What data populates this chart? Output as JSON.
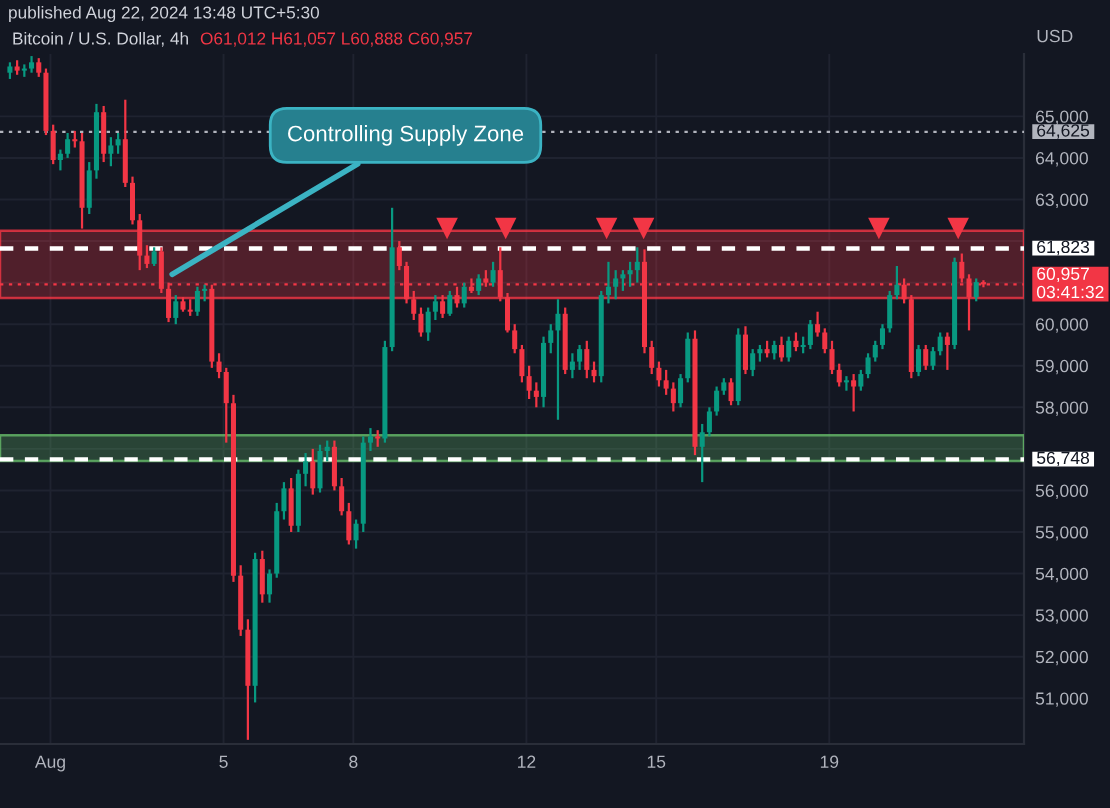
{
  "chart_data": {
    "type": "candlestick",
    "title": "Bitcoin / U.S. Dollar, 4h",
    "subtitle": "O61,012 H61,057 L60,888 C60,957",
    "ylabel": "USD",
    "annotations": [
      "published Aug 22, 2024 13:48 UTC+5:30",
      {
        "text": "Controlling Supply Zone",
        "x": "2024-08-03T19:30",
        "y": 61200
      }
    ],
    "x": [
      "2024-07-31T01:30",
      "2024-07-31T05:30",
      "2024-07-31T09:30",
      "2024-07-31T13:30",
      "2024-07-31T17:30",
      "2024-07-31T21:30",
      "2024-08-01T01:30",
      "2024-08-01T05:30",
      "2024-08-01T09:30",
      "2024-08-01T13:30",
      "2024-08-01T17:30",
      "2024-08-01T21:30",
      "2024-08-02T01:30",
      "2024-08-02T05:30",
      "2024-08-02T09:30",
      "2024-08-02T13:30",
      "2024-08-02T17:30",
      "2024-08-02T21:30",
      "2024-08-03T01:30",
      "2024-08-03T05:30",
      "2024-08-03T09:30",
      "2024-08-03T13:30",
      "2024-08-03T17:30",
      "2024-08-03T21:30",
      "2024-08-04T01:30",
      "2024-08-04T05:30",
      "2024-08-04T09:30",
      "2024-08-04T13:30",
      "2024-08-04T17:30",
      "2024-08-04T21:30",
      "2024-08-05T01:30",
      "2024-08-05T05:30",
      "2024-08-05T09:30",
      "2024-08-05T13:30",
      "2024-08-05T17:30",
      "2024-08-05T21:30",
      "2024-08-06T01:30",
      "2024-08-06T05:30",
      "2024-08-06T09:30",
      "2024-08-06T13:30",
      "2024-08-06T17:30",
      "2024-08-06T21:30",
      "2024-08-07T01:30",
      "2024-08-07T05:30",
      "2024-08-07T09:30",
      "2024-08-07T13:30",
      "2024-08-07T17:30",
      "2024-08-07T21:30",
      "2024-08-08T01:30",
      "2024-08-08T05:30",
      "2024-08-08T09:30",
      "2024-08-08T13:30",
      "2024-08-08T17:30",
      "2024-08-08T21:30",
      "2024-08-09T01:30",
      "2024-08-09T05:30",
      "2024-08-09T09:30",
      "2024-08-09T13:30",
      "2024-08-09T17:30",
      "2024-08-09T21:30",
      "2024-08-10T01:30",
      "2024-08-10T05:30",
      "2024-08-10T09:30",
      "2024-08-10T13:30",
      "2024-08-10T17:30",
      "2024-08-10T21:30",
      "2024-08-11T01:30",
      "2024-08-11T05:30",
      "2024-08-11T09:30",
      "2024-08-11T13:30",
      "2024-08-11T17:30",
      "2024-08-11T21:30",
      "2024-08-12T01:30",
      "2024-08-12T05:30",
      "2024-08-12T09:30",
      "2024-08-12T13:30",
      "2024-08-12T17:30",
      "2024-08-12T21:30",
      "2024-08-13T01:30",
      "2024-08-13T05:30",
      "2024-08-13T09:30",
      "2024-08-13T13:30",
      "2024-08-13T17:30",
      "2024-08-13T21:30",
      "2024-08-14T01:30",
      "2024-08-14T05:30",
      "2024-08-14T09:30",
      "2024-08-14T13:30",
      "2024-08-14T17:30",
      "2024-08-14T21:30",
      "2024-08-15T01:30",
      "2024-08-15T05:30",
      "2024-08-15T09:30",
      "2024-08-15T13:30",
      "2024-08-15T17:30",
      "2024-08-15T21:30",
      "2024-08-16T01:30",
      "2024-08-16T05:30",
      "2024-08-16T09:30",
      "2024-08-16T13:30",
      "2024-08-16T17:30",
      "2024-08-16T21:30",
      "2024-08-17T01:30",
      "2024-08-17T05:30",
      "2024-08-17T09:30",
      "2024-08-17T13:30",
      "2024-08-17T17:30",
      "2024-08-17T21:30",
      "2024-08-18T01:30",
      "2024-08-18T05:30",
      "2024-08-18T09:30",
      "2024-08-18T13:30",
      "2024-08-18T17:30",
      "2024-08-18T21:30",
      "2024-08-19T01:30",
      "2024-08-19T05:30",
      "2024-08-19T09:30",
      "2024-08-19T13:30",
      "2024-08-19T17:30",
      "2024-08-19T21:30",
      "2024-08-20T01:30",
      "2024-08-20T05:30",
      "2024-08-20T09:30",
      "2024-08-20T13:30",
      "2024-08-20T17:30",
      "2024-08-20T21:30",
      "2024-08-21T01:30",
      "2024-08-21T05:30",
      "2024-08-21T09:30",
      "2024-08-21T13:30",
      "2024-08-21T17:30",
      "2024-08-21T21:30",
      "2024-08-22T01:30",
      "2024-08-22T05:30",
      "2024-08-22T09:30",
      "2024-08-22T13:30"
    ],
    "ohlc": [
      [
        66050,
        66300,
        65900,
        66200
      ],
      [
        66200,
        66350,
        66000,
        66100
      ],
      [
        66100,
        66250,
        65950,
        66150
      ],
      [
        66150,
        66450,
        66050,
        66300
      ],
      [
        66300,
        66400,
        65950,
        66050
      ],
      [
        66050,
        66150,
        64550,
        64650
      ],
      [
        64650,
        64800,
        63850,
        63950
      ],
      [
        63950,
        64200,
        63700,
        64100
      ],
      [
        64100,
        64600,
        64000,
        64450
      ],
      [
        64450,
        64650,
        64250,
        64400
      ],
      [
        64400,
        64600,
        62300,
        62800
      ],
      [
        62800,
        63900,
        62650,
        63700
      ],
      [
        63700,
        65300,
        63500,
        65100
      ],
      [
        65100,
        65250,
        63900,
        64100
      ],
      [
        64100,
        64500,
        63800,
        64300
      ],
      [
        64300,
        64600,
        64100,
        64450
      ],
      [
        64450,
        65400,
        63300,
        63400
      ],
      [
        63400,
        63550,
        62400,
        62500
      ],
      [
        62500,
        62650,
        61300,
        61650
      ],
      [
        61650,
        61900,
        61350,
        61450
      ],
      [
        61450,
        61850,
        61400,
        61750
      ],
      [
        61750,
        61850,
        60750,
        60850
      ],
      [
        60850,
        61000,
        60050,
        60150
      ],
      [
        60150,
        60700,
        60000,
        60550
      ],
      [
        60550,
        60650,
        60300,
        60350
      ],
      [
        60350,
        60600,
        60200,
        60300
      ],
      [
        60300,
        60900,
        60200,
        60800
      ],
      [
        60800,
        60950,
        60550,
        60850
      ],
      [
        60850,
        60950,
        58950,
        59100
      ],
      [
        59100,
        59300,
        58700,
        58850
      ],
      [
        58850,
        58950,
        57150,
        58100
      ],
      [
        58100,
        58300,
        53800,
        53950
      ],
      [
        53950,
        54200,
        52500,
        52650
      ],
      [
        52650,
        52900,
        50000,
        51300
      ],
      [
        51300,
        54500,
        50900,
        54350
      ],
      [
        54350,
        54550,
        53300,
        53500
      ],
      [
        53500,
        54100,
        53300,
        54000
      ],
      [
        54000,
        55700,
        53900,
        55500
      ],
      [
        55500,
        56200,
        55300,
        56050
      ],
      [
        56050,
        56300,
        55000,
        55150
      ],
      [
        55150,
        56500,
        55000,
        56400
      ],
      [
        56400,
        56900,
        56100,
        56700
      ],
      [
        56700,
        57000,
        55900,
        56050
      ],
      [
        56050,
        57100,
        55950,
        56950
      ],
      [
        56950,
        57200,
        56700,
        57050
      ],
      [
        57050,
        57200,
        56000,
        56100
      ],
      [
        56100,
        56300,
        55400,
        55500
      ],
      [
        55500,
        55700,
        54700,
        54800
      ],
      [
        54800,
        55300,
        54600,
        55200
      ],
      [
        55200,
        57300,
        55000,
        57150
      ],
      [
        57150,
        57500,
        56950,
        57300
      ],
      [
        57300,
        57450,
        57050,
        57250
      ],
      [
        57250,
        59600,
        57150,
        59450
      ],
      [
        59450,
        62800,
        59350,
        61850
      ],
      [
        61850,
        62000,
        61300,
        61400
      ],
      [
        61400,
        61500,
        60500,
        60600
      ],
      [
        60600,
        60800,
        60100,
        60250
      ],
      [
        60250,
        60400,
        59700,
        59800
      ],
      [
        59800,
        60400,
        59600,
        60300
      ],
      [
        60300,
        60700,
        60100,
        60550
      ],
      [
        60550,
        60700,
        60150,
        60250
      ],
      [
        60250,
        60800,
        60200,
        60700
      ],
      [
        60700,
        60900,
        60400,
        60500
      ],
      [
        60500,
        61000,
        60400,
        60900
      ],
      [
        60900,
        61100,
        60750,
        60800
      ],
      [
        60800,
        61200,
        60700,
        61100
      ],
      [
        61100,
        61300,
        60900,
        61000
      ],
      [
        61000,
        61500,
        60900,
        61300
      ],
      [
        61300,
        61850,
        60550,
        60650
      ],
      [
        60650,
        60750,
        59800,
        59850
      ],
      [
        59850,
        60000,
        59300,
        59400
      ],
      [
        59400,
        59500,
        58600,
        58750
      ],
      [
        58750,
        59000,
        58200,
        58400
      ],
      [
        58400,
        58600,
        58000,
        58250
      ],
      [
        58250,
        59700,
        58000,
        59550
      ],
      [
        59550,
        60000,
        59300,
        59850
      ],
      [
        59850,
        60600,
        57700,
        60250
      ],
      [
        60250,
        60400,
        58800,
        58900
      ],
      [
        58900,
        59300,
        58700,
        59100
      ],
      [
        59100,
        59500,
        58900,
        59400
      ],
      [
        59400,
        59600,
        58700,
        58900
      ],
      [
        58900,
        59100,
        58600,
        58750
      ],
      [
        58750,
        60800,
        58600,
        60700
      ],
      [
        60700,
        61500,
        60500,
        60900
      ],
      [
        60900,
        61300,
        60600,
        61100
      ],
      [
        61100,
        61300,
        60800,
        61200
      ],
      [
        61200,
        61500,
        60900,
        61300
      ],
      [
        61300,
        61850,
        61000,
        61500
      ],
      [
        61500,
        61800,
        59300,
        59450
      ],
      [
        59450,
        59600,
        58800,
        58950
      ],
      [
        58950,
        59100,
        58500,
        58650
      ],
      [
        58650,
        58900,
        58300,
        58450
      ],
      [
        58450,
        58600,
        57900,
        58100
      ],
      [
        58100,
        58800,
        58000,
        58700
      ],
      [
        58700,
        59800,
        58600,
        59650
      ],
      [
        59650,
        59850,
        56850,
        57050
      ],
      [
        57050,
        57600,
        56200,
        57400
      ],
      [
        57400,
        58000,
        57300,
        57900
      ],
      [
        57900,
        58500,
        57800,
        58400
      ],
      [
        58400,
        58700,
        58300,
        58600
      ],
      [
        58600,
        58700,
        58050,
        58150
      ],
      [
        58150,
        59900,
        58050,
        59750
      ],
      [
        59750,
        59950,
        58800,
        58900
      ],
      [
        58900,
        59400,
        58750,
        59300
      ],
      [
        59300,
        59500,
        59100,
        59400
      ],
      [
        59400,
        59600,
        59200,
        59300
      ],
      [
        59300,
        59600,
        59150,
        59500
      ],
      [
        59500,
        59700,
        59100,
        59200
      ],
      [
        59200,
        59700,
        59100,
        59600
      ],
      [
        59600,
        59800,
        59350,
        59450
      ],
      [
        59450,
        59700,
        59300,
        59500
      ],
      [
        59500,
        60100,
        59400,
        60000
      ],
      [
        60000,
        60300,
        59700,
        59800
      ],
      [
        59800,
        59900,
        59300,
        59400
      ],
      [
        59400,
        59600,
        58800,
        58900
      ],
      [
        58900,
        59050,
        58500,
        58600
      ],
      [
        58600,
        58750,
        58400,
        58650
      ],
      [
        58650,
        58800,
        57900,
        58500
      ],
      [
        58500,
        58900,
        58400,
        58800
      ],
      [
        58800,
        59300,
        58700,
        59200
      ],
      [
        59200,
        59600,
        59100,
        59500
      ],
      [
        59500,
        60000,
        59400,
        59900
      ],
      [
        59900,
        60800,
        59800,
        60700
      ],
      [
        60700,
        61400,
        60600,
        60950
      ],
      [
        60950,
        61100,
        60500,
        60600
      ],
      [
        60600,
        60700,
        58700,
        58850
      ],
      [
        58850,
        59500,
        58750,
        59400
      ],
      [
        59400,
        59500,
        58900,
        59000
      ],
      [
        59000,
        59450,
        58900,
        59350
      ],
      [
        59350,
        59800,
        59250,
        59700
      ],
      [
        59700,
        59800,
        58900,
        59500
      ],
      [
        59500,
        61600,
        59400,
        61500
      ],
      [
        61500,
        61700,
        61000,
        61100
      ],
      [
        61100,
        61200,
        59850,
        60650
      ],
      [
        60650,
        61100,
        60550,
        61012
      ],
      [
        61012,
        61057,
        60888,
        60957
      ]
    ],
    "colors": [
      "#089981",
      "#f23645",
      "#089981",
      "#089981",
      "#f23645",
      "#f23645",
      "#f23645",
      "#089981",
      "#089981",
      "#f23645",
      "#f23645",
      "#089981",
      "#089981",
      "#f23645",
      "#089981",
      "#089981",
      "#f23645",
      "#f23645",
      "#f23645",
      "#f23645",
      "#089981",
      "#f23645",
      "#f23645",
      "#089981",
      "#f23645",
      "#f23645",
      "#089981",
      "#089981",
      "#f23645",
      "#f23645",
      "#f23645",
      "#f23645",
      "#f23645",
      "#f23645",
      "#089981",
      "#f23645",
      "#089981",
      "#089981",
      "#089981",
      "#f23645",
      "#089981",
      "#089981",
      "#f23645",
      "#089981",
      "#089981",
      "#f23645",
      "#f23645",
      "#f23645",
      "#089981",
      "#089981",
      "#089981",
      "#f23645",
      "#089981",
      "#089981",
      "#f23645",
      "#f23645",
      "#f23645",
      "#f23645",
      "#089981",
      "#089981",
      "#f23645",
      "#089981",
      "#f23645",
      "#089981",
      "#f23645",
      "#089981",
      "#f23645",
      "#089981",
      "#f23645",
      "#f23645",
      "#f23645",
      "#f23645",
      "#f23645",
      "#f23645",
      "#089981",
      "#089981",
      "#089981",
      "#f23645",
      "#089981",
      "#089981",
      "#f23645",
      "#f23645",
      "#089981",
      "#089981",
      "#089981",
      "#089981",
      "#089981",
      "#089981",
      "#f23645",
      "#f23645",
      "#f23645",
      "#f23645",
      "#f23645",
      "#089981",
      "#089981",
      "#f23645",
      "#089981",
      "#089981",
      "#089981",
      "#089981",
      "#f23645",
      "#089981",
      "#f23645",
      "#089981",
      "#089981",
      "#f23645",
      "#089981",
      "#f23645",
      "#089981",
      "#f23645",
      "#089981",
      "#089981",
      "#f23645",
      "#f23645",
      "#f23645",
      "#f23645",
      "#089981",
      "#f23645",
      "#089981",
      "#089981",
      "#089981",
      "#089981",
      "#089981",
      "#089981",
      "#f23645",
      "#f23645",
      "#089981",
      "#f23645",
      "#089981",
      "#089981",
      "#f23645",
      "#089981",
      "#f23645",
      "#f23645",
      "#089981",
      "#f23645"
    ],
    "series": [
      {
        "type": "scatter",
        "marker": "triangle",
        "color": "#f23645",
        "x": [
          "2024-08-10T04:00",
          "2024-08-11T12:30",
          "2024-08-13T20:30",
          "2024-08-14T17:00",
          "2024-08-20T03:30",
          "2024-08-21T23:30"
        ],
        "values": [
          62300,
          62300,
          62300,
          62300,
          62300,
          62300
        ]
      }
    ],
    "xlim": [
      "2024-07-30T20:00",
      "2024-08-23T12:00"
    ],
    "xticks": [
      {
        "value": "2024-08-01",
        "label": "Aug"
      },
      {
        "value": "2024-08-05",
        "label": "5"
      },
      {
        "value": "2024-08-08",
        "label": "8"
      },
      {
        "value": "2024-08-12",
        "label": "12"
      },
      {
        "value": "2024-08-15",
        "label": "15"
      },
      {
        "value": "2024-08-19",
        "label": "19"
      }
    ],
    "ylim": [
      49900,
      66500
    ],
    "yticks": [
      {
        "value": 51000,
        "label": "51,000"
      },
      {
        "value": 52000,
        "label": "52,000"
      },
      {
        "value": 53000,
        "label": "53,000"
      },
      {
        "value": 54000,
        "label": "54,000"
      },
      {
        "value": 55000,
        "label": "55,000"
      },
      {
        "value": 56000,
        "label": "56,000"
      },
      {
        "value": 57000,
        "label": null
      },
      {
        "value": 58000,
        "label": "58,000"
      },
      {
        "value": 59000,
        "label": "59,000"
      },
      {
        "value": 60000,
        "label": "60,000"
      },
      {
        "value": 61000,
        "label": null
      },
      {
        "value": 62000,
        "label": null
      },
      {
        "value": 63000,
        "label": "63,000"
      },
      {
        "value": 64000,
        "label": "64,000"
      },
      {
        "value": 65000,
        "label": "65,000"
      }
    ],
    "ref_lines": [
      {
        "axis": "y",
        "value": 64625,
        "label": "64,625",
        "color": "#b2b5be",
        "line_style": "dotted"
      },
      {
        "axis": "y",
        "value": 61823,
        "label": "61,823",
        "color": "#ffffff",
        "line_style": "dashed"
      },
      {
        "axis": "y",
        "value": 60957,
        "label": "60,957\n03:41:32",
        "color": "#f23645",
        "line_style": "dotted"
      },
      {
        "axis": "y",
        "value": 56748,
        "label": "56,748",
        "color": "#ffffff",
        "line_style": "dashed"
      }
    ],
    "bands": [
      {
        "axis": "y",
        "from": 60630,
        "to": 62250,
        "color": "#f23645"
      },
      {
        "axis": "y",
        "from": 56710,
        "to": 57330,
        "color": "#66bb6a"
      }
    ],
    "grid": true
  }
}
